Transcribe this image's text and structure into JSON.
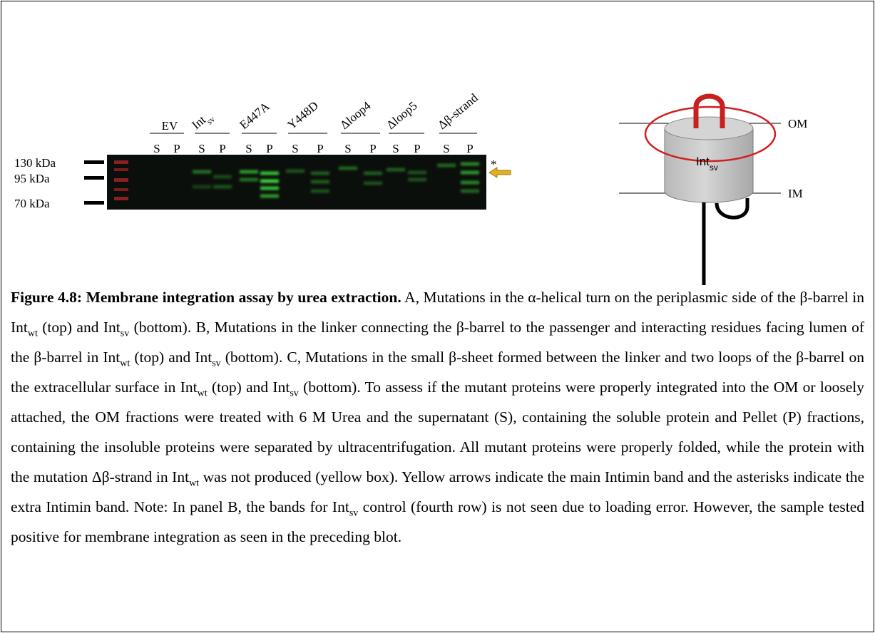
{
  "blot": {
    "markers": [
      "130 kDa",
      "95 kDa",
      "70 kDa"
    ],
    "lanes": [
      {
        "name": "EV",
        "fractions": [
          "S",
          "P"
        ]
      },
      {
        "name": "Int",
        "sub": "sv",
        "fractions": [
          "S",
          "P"
        ]
      },
      {
        "name": "E447A",
        "fractions": [
          "S",
          "P"
        ]
      },
      {
        "name": "Y448D",
        "fractions": [
          "S",
          "P"
        ]
      },
      {
        "name": "Δloop4",
        "fractions": [
          "S",
          "P"
        ]
      },
      {
        "name": "Δloop5",
        "fractions": [
          "S",
          "P"
        ]
      },
      {
        "name": "Δβ-strand",
        "fractions": [
          "S",
          "P"
        ]
      }
    ],
    "asterisk": "*"
  },
  "diagram": {
    "outer_membrane": "OM",
    "inner_membrane": "IM",
    "protein": {
      "name": "Int",
      "sub": "sv"
    }
  },
  "caption": {
    "title": "Figure 4.8: Membrane integration assay by urea extraction.",
    "runs": [
      {
        "text": " A, Mutations in the α-helical turn on the periplasmic side of the β-barrel in Int"
      },
      {
        "sub": "wt"
      },
      {
        "text": " (top) and Int"
      },
      {
        "sub": "sv"
      },
      {
        "text": " (bottom). B, Mutations in the linker connecting the β-barrel to the passenger and interacting residues facing lumen of the β-barrel in Int"
      },
      {
        "sub": "wt"
      },
      {
        "text": " (top) and Int"
      },
      {
        "sub": "sv"
      },
      {
        "text": " (bottom). C, Mutations in the small β-sheet formed between the linker and two loops of the β-barrel on the extracellular surface in Int"
      },
      {
        "sub": "wt"
      },
      {
        "text": " (top) and Int"
      },
      {
        "sub": "sv"
      },
      {
        "text": " (bottom). To assess if the mutant proteins were properly integrated into the OM or loosely attached, the OM fractions were treated with 6 M Urea and the supernatant (S), containing the soluble protein and Pellet (P) fractions, containing the insoluble proteins were separated by ultracentrifugation. All mutant proteins were properly folded, while the protein with the mutation Δβ-strand in Int"
      },
      {
        "sub": "wt"
      },
      {
        "text": " was not produced (yellow box). Yellow arrows indicate the main Intimin band and the asterisks indicate the extra Intimin band. Note: In panel B, the bands for Int"
      },
      {
        "sub": "sv"
      },
      {
        "text": " control (fourth row) is not seen due to loading error. However, the sample tested positive for membrane integration as seen in the preceding blot."
      }
    ]
  }
}
